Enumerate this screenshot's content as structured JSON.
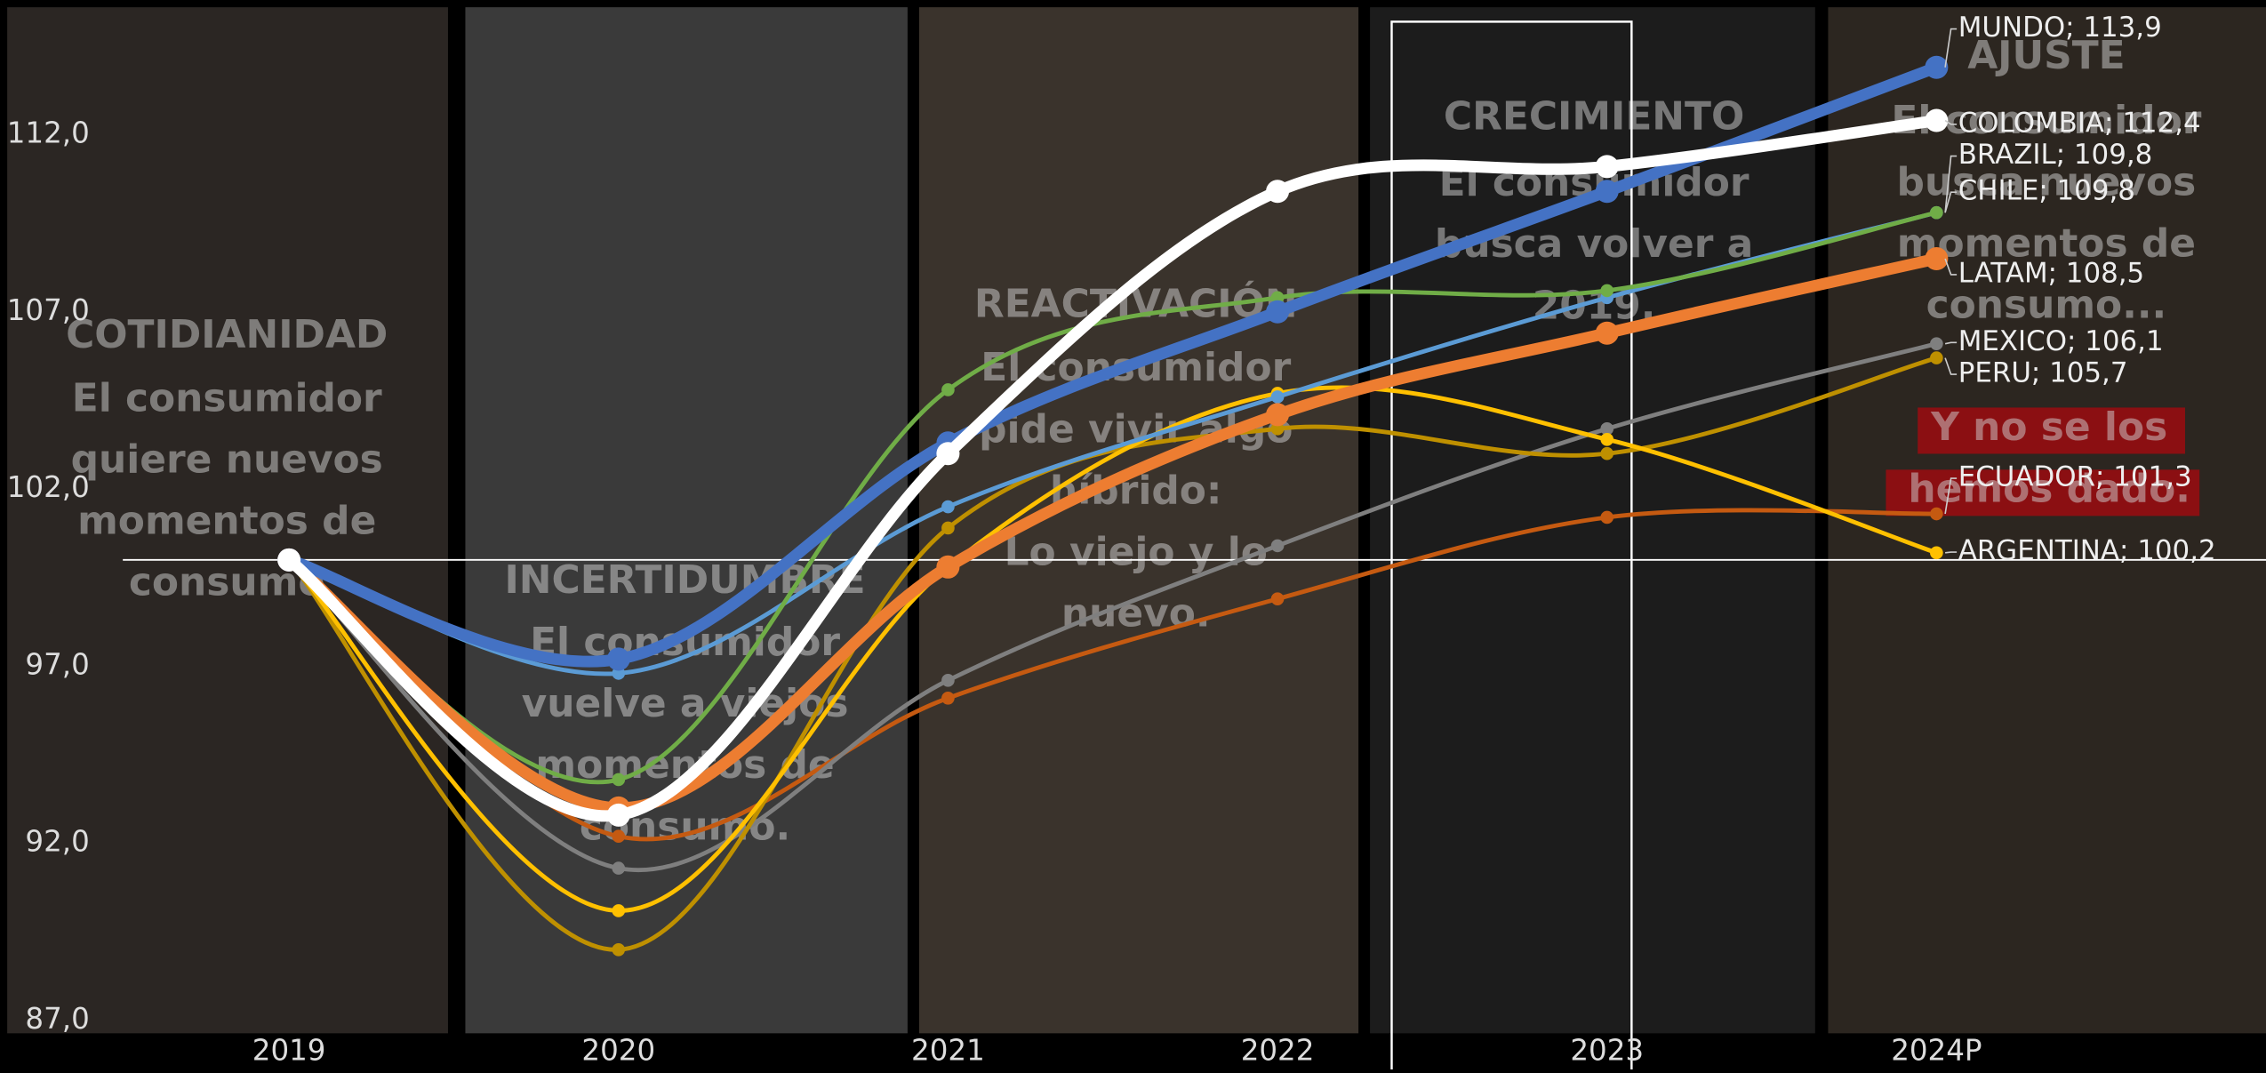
{
  "chart_data": {
    "type": "line",
    "categories": [
      "2019",
      "2020",
      "2021",
      "2022",
      "2023",
      "2024P"
    ],
    "ylim": [
      86.6,
      115.8
    ],
    "yticks": [
      {
        "value": 87,
        "label": "87,0"
      },
      {
        "value": 92,
        "label": "92,0"
      },
      {
        "value": 97,
        "label": "97,0"
      },
      {
        "value": 102,
        "label": "102,0"
      },
      {
        "value": 107,
        "label": "107,0"
      },
      {
        "value": 112,
        "label": "112,0"
      }
    ],
    "reference_line": 100,
    "highlight_category": 4,
    "series": [
      {
        "label": "MUNDO;  113,9",
        "color": "#4472c4",
        "width": 8,
        "values": [
          100,
          97.2,
          103.3,
          107.0,
          110.4,
          113.9
        ]
      },
      {
        "label": "COLOMBIA;  112,4",
        "color": "#ffffff",
        "width": 8,
        "values": [
          100,
          92.8,
          103.0,
          110.4,
          111.1,
          112.4
        ]
      },
      {
        "label": "BRAZIL;  109,8",
        "color": "#5b9bd5",
        "width": 3,
        "values": [
          100,
          96.8,
          101.5,
          104.6,
          107.4,
          109.8
        ]
      },
      {
        "label": "CHILE;  109,8",
        "color": "#70ad47",
        "width": 3,
        "values": [
          100,
          93.8,
          104.8,
          107.4,
          107.6,
          109.8
        ]
      },
      {
        "label": "LATAM;  108,5",
        "color": "#ed7d31",
        "width": 8,
        "values": [
          100,
          93.0,
          99.8,
          104.1,
          106.4,
          108.5
        ]
      },
      {
        "label": "MEXICO;  106,1",
        "color": "#7f7f7f",
        "width": 3,
        "values": [
          100,
          91.3,
          96.6,
          100.4,
          103.7,
          106.1
        ]
      },
      {
        "label": "PERU;  105,7",
        "color": "#bf9000",
        "width": 3,
        "values": [
          100,
          89.0,
          100.9,
          103.7,
          103.0,
          105.7
        ]
      },
      {
        "label": "ECUADOR;  101,3",
        "color": "#c55a11",
        "width": 3,
        "values": [
          100,
          92.2,
          96.1,
          98.9,
          101.2,
          101.3
        ]
      },
      {
        "label": "ARGENTINA;  100,2",
        "color": "#ffc000",
        "width": 3,
        "values": [
          100,
          90.1,
          99.8,
          104.7,
          103.4,
          100.2
        ]
      }
    ],
    "stages": [
      {
        "title": "COTIDIANIDAD",
        "lines": [
          "El consumidor",
          "quiere nuevos",
          "momentos de",
          "consumo"
        ]
      },
      {
        "title": "INCERTIDUMBRE",
        "lines": [
          "El consumidor",
          "vuelve a viejos",
          "momentos de",
          "consumo."
        ]
      },
      {
        "title": "REACTIVACIÓN",
        "lines": [
          "El consumidor",
          "pide vivir algo",
          "híbrido:",
          "Lo viejo y lo",
          "nuevo."
        ]
      },
      {
        "title": "CRECIMIENTO",
        "lines": [
          "El consumidor",
          "busca volver a",
          "2019."
        ]
      },
      {
        "title": "AJUSTE",
        "lines": [
          "El consumidor",
          "busca nuevos",
          "momentos de",
          "consumo..."
        ]
      }
    ],
    "callout": [
      "Y no se los",
      "hemos dado."
    ]
  }
}
